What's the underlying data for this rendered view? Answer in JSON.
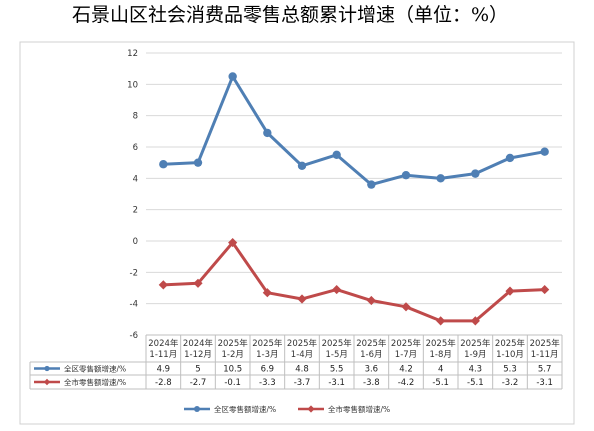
{
  "chart_data": {
    "type": "line",
    "title": "石景山区社会消费品零售总额累计增速（单位：%）",
    "categories": [
      [
        "2024年",
        "1-11月"
      ],
      [
        "2024年",
        "1-12月"
      ],
      [
        "2025年",
        "1-2月"
      ],
      [
        "2025年",
        "1-3月"
      ],
      [
        "2025年",
        "1-4月"
      ],
      [
        "2025年",
        "1-5月"
      ],
      [
        "2025年",
        "1-6月"
      ],
      [
        "2025年",
        "1-7月"
      ],
      [
        "2025年",
        "1-8月"
      ],
      [
        "2025年",
        "1-9月"
      ],
      [
        "2025年",
        "1-10月"
      ],
      [
        "2025年",
        "1-11月"
      ]
    ],
    "series": [
      {
        "name": "全区零售额增速/%",
        "color": "#4f7fb4",
        "marker": "circle",
        "values": [
          4.9,
          5.0,
          10.5,
          6.9,
          4.8,
          5.5,
          3.6,
          4.2,
          4,
          4.3,
          5.3,
          5.7
        ]
      },
      {
        "name": "全市零售额增速/%",
        "color": "#bf4a4a",
        "marker": "diamond",
        "values": [
          -2.8,
          -2.7,
          -0.1,
          -3.3,
          -3.7,
          -3.1,
          -3.8,
          -4.2,
          -5.1,
          -5.1,
          -3.2,
          -3.1
        ]
      }
    ],
    "ylim": [
      -6,
      12
    ],
    "ytick_step": 2,
    "grid": true,
    "data_table": true,
    "legend_position": "bottom"
  }
}
